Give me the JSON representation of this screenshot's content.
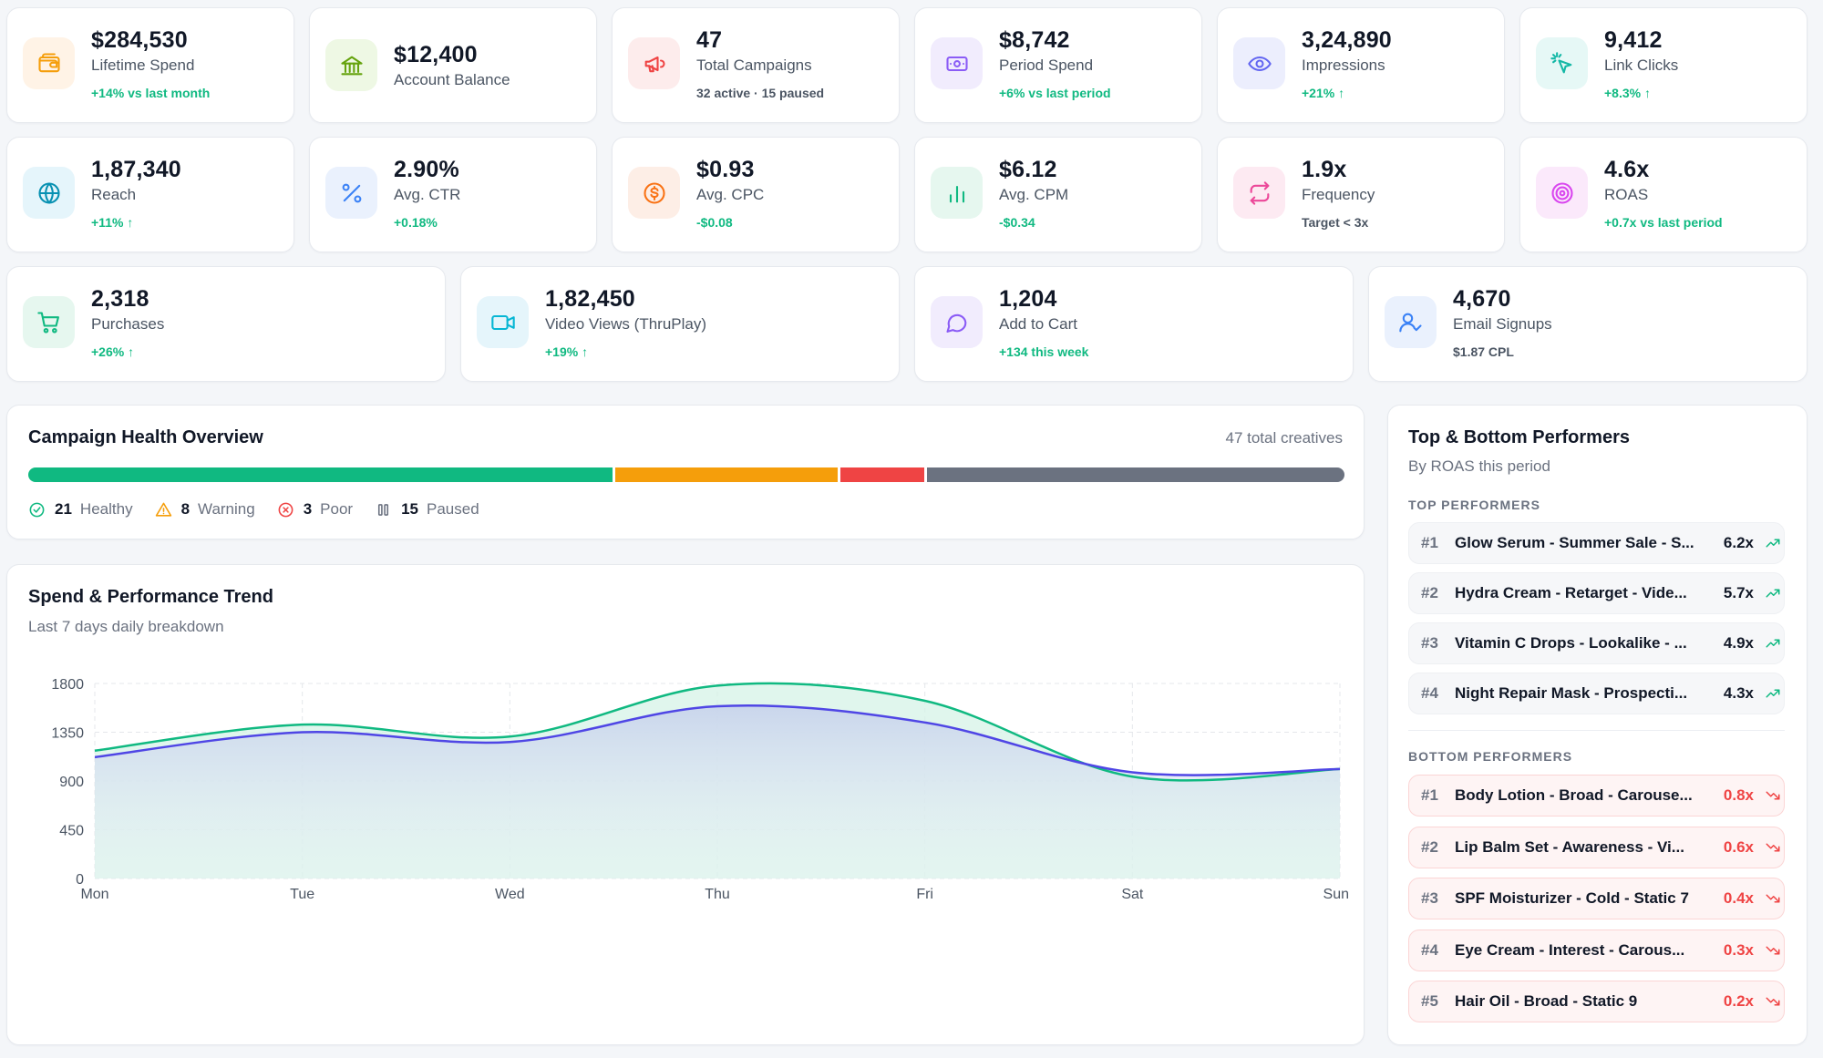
{
  "kpis_row1": [
    {
      "value": "$284,530",
      "label": "Lifetime Spend",
      "sub": "+14% vs last month",
      "icon": "wallet-icon"
    },
    {
      "value": "$12,400",
      "label": "Account Balance",
      "sub": "",
      "icon": "bank-icon"
    },
    {
      "value": "47",
      "label": "Total Campaigns",
      "sub": "32 active · 15 paused",
      "icon": "megaphone-icon"
    },
    {
      "value": "$8,742",
      "label": "Period Spend",
      "sub": "+6% vs last period",
      "icon": "banknote-icon"
    },
    {
      "value": "3,24,890",
      "label": "Impressions",
      "sub": "+21% ↑",
      "icon": "eye-icon"
    },
    {
      "value": "9,412",
      "label": "Link Clicks",
      "sub": "+8.3% ↑",
      "icon": "cursor-click-icon"
    }
  ],
  "kpis_row2": [
    {
      "value": "1,87,340",
      "label": "Reach",
      "sub": "+11% ↑",
      "icon": "globe-icon"
    },
    {
      "value": "2.90%",
      "label": "Avg. CTR",
      "sub": "+0.18%",
      "icon": "percent-icon"
    },
    {
      "value": "$0.93",
      "label": "Avg. CPC",
      "sub": "-$0.08",
      "icon": "dollar-circle-icon"
    },
    {
      "value": "$6.12",
      "label": "Avg. CPM",
      "sub": "-$0.34",
      "icon": "bar-chart-icon"
    },
    {
      "value": "1.9x",
      "label": "Frequency",
      "sub": "Target < 3x",
      "icon": "repeat-icon"
    },
    {
      "value": "4.6x",
      "label": "ROAS",
      "sub": "+0.7x vs last period",
      "icon": "target-icon"
    }
  ],
  "kpis_row3": [
    {
      "value": "2,318",
      "label": "Purchases",
      "sub": "+26% ↑",
      "icon": "cart-icon"
    },
    {
      "value": "1,82,450",
      "label": "Video Views (ThruPlay)",
      "sub": "+19% ↑",
      "icon": "video-icon"
    },
    {
      "value": "1,204",
      "label": "Add to Cart",
      "sub": "+134 this week",
      "icon": "chat-bubble-icon"
    },
    {
      "value": "4,670",
      "label": "Email Signups",
      "sub": "$1.87 CPL",
      "icon": "user-check-icon"
    }
  ],
  "health": {
    "title": "Campaign Health Overview",
    "total": "47 total creatives",
    "segments": [
      {
        "label": "Healthy",
        "count": "21",
        "value": 21,
        "color": "#10b981",
        "icon": "check-circle-icon"
      },
      {
        "label": "Warning",
        "count": "8",
        "value": 8,
        "color": "#f59e0b",
        "icon": "warning-triangle-icon"
      },
      {
        "label": "Poor",
        "count": "3",
        "value": 3,
        "color": "#ef4444",
        "icon": "x-circle-icon"
      },
      {
        "label": "Paused",
        "count": "15",
        "value": 15,
        "color": "#6b7280",
        "icon": "pause-icon"
      }
    ]
  },
  "trend": {
    "title": "Spend & Performance Trend",
    "subtitle": "Last 7 days daily breakdown"
  },
  "chart_data": {
    "type": "area",
    "categories": [
      "Mon",
      "Tue",
      "Wed",
      "Thu",
      "Fri",
      "Sat",
      "Sun"
    ],
    "yticks": [
      "1800",
      "1350",
      "900",
      "450",
      "0"
    ],
    "ylim": [
      0,
      1800
    ],
    "grid": true,
    "series": [
      {
        "values": [
          1180,
          1420,
          1310,
          1780,
          1640,
          940,
          1010
        ],
        "color": "#10b981"
      },
      {
        "values": [
          1120,
          1350,
          1260,
          1590,
          1440,
          980,
          1010
        ],
        "color": "#4f46e5"
      }
    ]
  },
  "performers": {
    "title": "Top & Bottom Performers",
    "subtitle": "By ROAS this period",
    "top_heading": "TOP PERFORMERS",
    "bottom_heading": "BOTTOM PERFORMERS",
    "top": [
      {
        "rank": "#1",
        "name": "Glow Serum - Summer Sale - S...",
        "roas": "6.2x"
      },
      {
        "rank": "#2",
        "name": "Hydra Cream - Retarget - Vide...",
        "roas": "5.7x"
      },
      {
        "rank": "#3",
        "name": "Vitamin C Drops - Lookalike - ...",
        "roas": "4.9x"
      },
      {
        "rank": "#4",
        "name": "Night Repair Mask - Prospecti...",
        "roas": "4.3x"
      }
    ],
    "bottom": [
      {
        "rank": "#1",
        "name": "Body Lotion - Broad - Carouse...",
        "roas": "0.8x"
      },
      {
        "rank": "#2",
        "name": "Lip Balm Set - Awareness - Vi...",
        "roas": "0.6x"
      },
      {
        "rank": "#3",
        "name": "SPF Moisturizer - Cold - Static 7",
        "roas": "0.4x"
      },
      {
        "rank": "#4",
        "name": "Eye Cream - Interest - Carous...",
        "roas": "0.3x"
      },
      {
        "rank": "#5",
        "name": "Hair Oil - Broad - Static 9",
        "roas": "0.2x"
      }
    ]
  }
}
